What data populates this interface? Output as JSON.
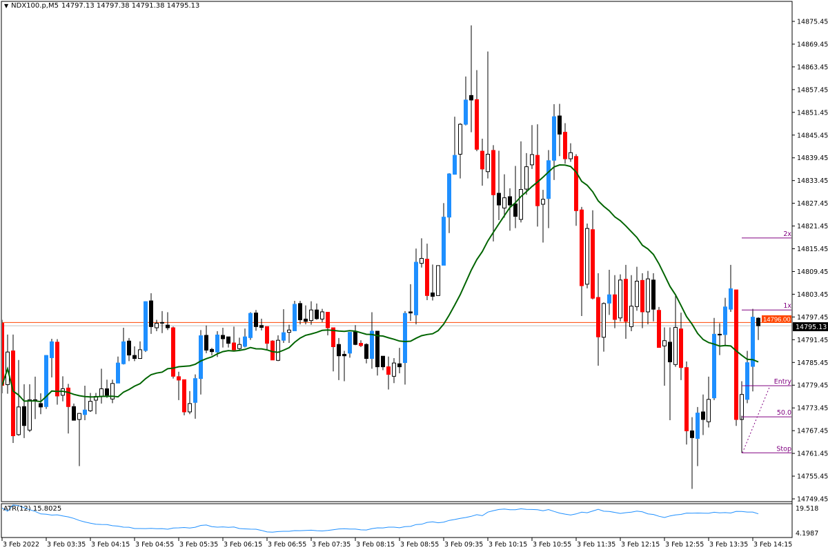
{
  "header": {
    "dropdown_icon": "triangle-down-icon",
    "symbol": "NDX100.p,M5",
    "ohlc": "14797.13 14797.38 14791.38 14795.13"
  },
  "colors": {
    "bull_strong": "#1e8fff",
    "bear_strong": "#ff0000",
    "bull": "#ffffff",
    "bear": "#000000",
    "ma": "#006400",
    "atr": "#1e8fff",
    "ask_line": "#ff4500",
    "bid_line": "#c0c0c0",
    "levels": "#800080"
  },
  "price_axis": {
    "ticks": [
      "14875.45",
      "14869.45",
      "14863.45",
      "14857.45",
      "14851.45",
      "14845.45",
      "14839.45",
      "14833.45",
      "14827.45",
      "14821.45",
      "14815.45",
      "14809.45",
      "14803.45",
      "14797.45",
      "14791.45",
      "14785.45",
      "14779.45",
      "14773.45",
      "14767.45",
      "14761.45",
      "14755.45",
      "14749.45"
    ],
    "ask_label": "14796.00",
    "bid_label": "14795.13"
  },
  "time_axis": {
    "labels": [
      "3 Feb 2022",
      "3 Feb 03:35",
      "3 Feb 04:15",
      "3 Feb 04:55",
      "3 Feb 05:35",
      "3 Feb 06:15",
      "3 Feb 06:55",
      "3 Feb 07:35",
      "3 Feb 08:15",
      "3 Feb 08:55",
      "3 Feb 09:35",
      "3 Feb 10:15",
      "3 Feb 10:55",
      "3 Feb 11:35",
      "3 Feb 12:15",
      "3 Feb 12:55",
      "3 Feb 13:35",
      "3 Feb 14:15"
    ]
  },
  "indicators": {
    "ma_period": 20,
    "atr_label": "ATR(12) 15.8025",
    "atr_period": 12,
    "atr_axis": [
      "19.518",
      "4.1987"
    ],
    "atr_range": [
      4.1987,
      19.518
    ]
  },
  "price_range": [
    14749.45,
    14875.45
  ],
  "ask_price": 14796.0,
  "bid_price": 14795.13,
  "levels": [
    {
      "label": "2x",
      "price": 14818.3
    },
    {
      "label": "1x",
      "price": 14799.3
    },
    {
      "label": "Entry",
      "price": 14779.3
    },
    {
      "label": "50.0",
      "price": 14771.1
    },
    {
      "label": "Stop",
      "price": 14761.6
    }
  ],
  "chart_data": {
    "type": "candlestick",
    "candles": [
      [
        14795.8,
        14796.7,
        14777.3,
        14779.4,
        "r"
      ],
      [
        14779.6,
        14792.8,
        14777.2,
        14788.2,
        "w"
      ],
      [
        14788.5,
        14792.8,
        14764.2,
        14766.1,
        "r"
      ],
      [
        14766.4,
        14786.1,
        14766.1,
        14773.7,
        "w"
      ],
      [
        14773.8,
        14779.7,
        14765.5,
        14768.8,
        "k"
      ],
      [
        14767.6,
        14779.7,
        14767.1,
        14775.6,
        "w"
      ],
      [
        14775.6,
        14781.7,
        14770.5,
        14775.4,
        "k"
      ],
      [
        14774.6,
        14777.3,
        14771.8,
        14773.7,
        "k"
      ],
      [
        14773.8,
        14787.4,
        14773.2,
        14787.3,
        "b"
      ],
      [
        14786.7,
        14791.7,
        14781.5,
        14790.9,
        "b"
      ],
      [
        14790.8,
        14791.6,
        14774.3,
        14776.6,
        "r"
      ],
      [
        14776.8,
        14781.8,
        14775.2,
        14778.5,
        "w"
      ],
      [
        14778.7,
        14779.8,
        14766.7,
        14773.8,
        "r"
      ],
      [
        14773.8,
        14774.6,
        14770.1,
        14770.2,
        "k"
      ],
      [
        14770.4,
        14772.1,
        14758.1,
        14772.0,
        "w"
      ],
      [
        14771.7,
        14779.3,
        14770.2,
        14772.9,
        "b"
      ],
      [
        14772.7,
        14777.4,
        14772.4,
        14775.2,
        "w"
      ],
      [
        14775.5,
        14777.4,
        14771.8,
        14776.5,
        "w"
      ],
      [
        14776.5,
        14783.8,
        14774.6,
        14778.5,
        "w"
      ],
      [
        14778.5,
        14780.9,
        14776.1,
        14776.8,
        "k"
      ],
      [
        14775.8,
        14780.9,
        14774.7,
        14779.9,
        "w"
      ],
      [
        14780.0,
        14787.0,
        14780.0,
        14785.3,
        "b"
      ],
      [
        14785.1,
        14794.6,
        14784.9,
        14790.9,
        "b"
      ],
      [
        14791.1,
        14791.9,
        14785.8,
        14787.4,
        "k"
      ],
      [
        14787.3,
        14789.7,
        14785.8,
        14786.5,
        "k"
      ],
      [
        14786.5,
        14791.0,
        14786.4,
        14788.8,
        "w"
      ],
      [
        14788.6,
        14801.6,
        14788.2,
        14801.5,
        "b"
      ],
      [
        14801.7,
        14803.7,
        14793.0,
        14794.9,
        "k"
      ],
      [
        14794.6,
        14796.7,
        14793.7,
        14795.8,
        "w"
      ],
      [
        14796.0,
        14799.0,
        14793.2,
        14795.9,
        "k"
      ],
      [
        14795.3,
        14798.7,
        14794.0,
        14794.6,
        "k"
      ],
      [
        14794.6,
        14794.9,
        14781.2,
        14781.8,
        "r"
      ],
      [
        14781.7,
        14783.0,
        14775.5,
        14780.8,
        "r"
      ],
      [
        14780.9,
        14780.9,
        14771.5,
        14772.4,
        "r"
      ],
      [
        14772.4,
        14777.9,
        14771.8,
        14774.6,
        "w"
      ],
      [
        14774.9,
        14782.3,
        14770.6,
        14781.2,
        "b"
      ],
      [
        14781.2,
        14794.0,
        14777.0,
        14792.5,
        "b"
      ],
      [
        14792.6,
        14795.2,
        14787.9,
        14788.7,
        "k"
      ],
      [
        14788.9,
        14789.3,
        14787.3,
        14788.3,
        "k"
      ],
      [
        14788.2,
        14793.7,
        14786.9,
        14792.7,
        "b"
      ],
      [
        14792.6,
        14794.6,
        14789.4,
        14791.7,
        "k"
      ],
      [
        14792.2,
        14792.2,
        14789.4,
        14790.5,
        "k"
      ],
      [
        14790.6,
        14794.9,
        14788.5,
        14788.8,
        "r"
      ],
      [
        14789.1,
        14792.0,
        14788.8,
        14790.2,
        "w"
      ],
      [
        14789.7,
        14794.4,
        14789.4,
        14792.2,
        "b"
      ],
      [
        14792.0,
        14798.7,
        14791.4,
        14798.4,
        "b"
      ],
      [
        14798.5,
        14799.3,
        14793.8,
        14794.9,
        "k"
      ],
      [
        14795.2,
        14797.0,
        14793.9,
        14794.7,
        "k"
      ],
      [
        14794.9,
        14794.9,
        14788.8,
        14790.5,
        "r"
      ],
      [
        14791.1,
        14791.3,
        14786.1,
        14786.1,
        "r"
      ],
      [
        14786.0,
        14792.6,
        14785.8,
        14791.3,
        "w"
      ],
      [
        14791.3,
        14799.5,
        14790.6,
        14793.3,
        "b"
      ],
      [
        14793.4,
        14795.4,
        14790.6,
        14794.0,
        "w"
      ],
      [
        14793.8,
        14801.7,
        14793.8,
        14800.8,
        "b"
      ],
      [
        14801.0,
        14801.7,
        14795.5,
        14796.7,
        "k"
      ],
      [
        14796.9,
        14800.5,
        14795.5,
        14796.3,
        "k"
      ],
      [
        14796.5,
        14801.6,
        14795.4,
        14799.3,
        "w"
      ],
      [
        14799.3,
        14801.0,
        14796.7,
        14797.0,
        "k"
      ],
      [
        14796.9,
        14799.6,
        14796.1,
        14798.8,
        "w"
      ],
      [
        14798.7,
        14798.8,
        14792.6,
        14794.6,
        "r"
      ],
      [
        14794.6,
        14794.6,
        14783.1,
        14789.6,
        "r"
      ],
      [
        14790.2,
        14791.9,
        14780.8,
        14787.2,
        "k"
      ],
      [
        14787.6,
        14788.5,
        14780.5,
        14787.2,
        "k"
      ],
      [
        14787.9,
        14793.4,
        14786.7,
        14793.4,
        "b"
      ],
      [
        14793.5,
        14795.3,
        14790.0,
        14790.2,
        "k"
      ],
      [
        14790.5,
        14791.3,
        14789.5,
        14789.9,
        "r"
      ],
      [
        14790.2,
        14790.5,
        14785.2,
        14786.5,
        "k"
      ],
      [
        14786.5,
        14798.7,
        14783.8,
        14793.7,
        "b"
      ],
      [
        14793.7,
        14793.7,
        14782.0,
        14784.3,
        "k"
      ],
      [
        14787.1,
        14787.1,
        14783.4,
        14784.3,
        "k"
      ],
      [
        14784.3,
        14787.0,
        14778.3,
        14782.3,
        "r"
      ],
      [
        14781.8,
        14786.6,
        14780.0,
        14785.3,
        "w"
      ],
      [
        14785.1,
        14789.3,
        14782.6,
        14784.3,
        "k"
      ],
      [
        14785.4,
        14799.0,
        14779.6,
        14798.4,
        "b"
      ],
      [
        14798.8,
        14806.1,
        14796.4,
        14798.5,
        "k"
      ],
      [
        14798.0,
        14815.5,
        14795.5,
        14811.9,
        "b"
      ],
      [
        14811.6,
        14818.2,
        14810.5,
        14812.9,
        "w"
      ],
      [
        14812.7,
        14816.8,
        14801.9,
        14803.1,
        "r"
      ],
      [
        14803.8,
        14811.3,
        14801.8,
        14802.9,
        "k"
      ],
      [
        14803.1,
        14811.1,
        14803.0,
        14811.0,
        "w"
      ],
      [
        14811.1,
        14827.5,
        14811.1,
        14823.8,
        "b"
      ],
      [
        14823.8,
        14835.4,
        14819.6,
        14835.2,
        "b"
      ],
      [
        14835.1,
        14850.3,
        14835.0,
        14840.1,
        "b"
      ],
      [
        14840.4,
        14848.6,
        14834.0,
        14848.3,
        "w"
      ],
      [
        14848.3,
        14860.9,
        14848.0,
        14854.7,
        "b"
      ],
      [
        14855.9,
        14874.4,
        14846.2,
        14854.7,
        "k"
      ],
      [
        14854.8,
        14862.6,
        14841.2,
        14841.7,
        "r"
      ],
      [
        14841.2,
        14844.5,
        14832.1,
        14836.5,
        "r"
      ],
      [
        14835.8,
        14867.5,
        14834.0,
        14840.4,
        "w"
      ],
      [
        14841.4,
        14842.8,
        14817.4,
        14829.7,
        "r"
      ],
      [
        14830.1,
        14841.3,
        14823.0,
        14827.0,
        "k"
      ],
      [
        14826.2,
        14835.1,
        14823.7,
        14828.9,
        "w"
      ],
      [
        14829.2,
        14831.4,
        14820.2,
        14827.0,
        "k"
      ],
      [
        14827.3,
        14837.3,
        14820.9,
        14824.0,
        "k"
      ],
      [
        14823.2,
        14843.8,
        14822.4,
        14831.1,
        "w"
      ],
      [
        14831.2,
        14840.7,
        14829.7,
        14837.1,
        "w"
      ],
      [
        14837.6,
        14848.1,
        14836.5,
        14840.3,
        "w"
      ],
      [
        14840.1,
        14848.3,
        14821.3,
        14826.8,
        "r"
      ],
      [
        14827.2,
        14831.0,
        14817.1,
        14828.5,
        "w"
      ],
      [
        14828.7,
        14841.5,
        14820.9,
        14838.7,
        "b"
      ],
      [
        14838.8,
        14853.6,
        14833.6,
        14850.3,
        "b"
      ],
      [
        14850.5,
        14853.7,
        14839.9,
        14845.7,
        "k"
      ],
      [
        14846.2,
        14848.6,
        14837.9,
        14839.2,
        "r"
      ],
      [
        14839.2,
        14843.3,
        14838.4,
        14840.8,
        "w"
      ],
      [
        14839.8,
        14840.4,
        14821.5,
        14825.5,
        "r"
      ],
      [
        14825.7,
        14826.5,
        14797.7,
        14805.7,
        "r"
      ],
      [
        14806.1,
        14822.1,
        14805.0,
        14820.8,
        "w"
      ],
      [
        14820.5,
        14825.6,
        14802.1,
        14802.4,
        "r"
      ],
      [
        14802.6,
        14809.0,
        14784.6,
        14792.2,
        "r"
      ],
      [
        14792.1,
        14801.3,
        14788.3,
        14801.0,
        "w"
      ],
      [
        14801.1,
        14809.9,
        14798.0,
        14803.3,
        "b"
      ],
      [
        14803.3,
        14808.5,
        14794.5,
        14796.8,
        "r"
      ],
      [
        14797.2,
        14808.7,
        14796.3,
        14807.2,
        "w"
      ],
      [
        14807.4,
        14811.2,
        14791.7,
        14796.3,
        "r"
      ],
      [
        14794.9,
        14808.5,
        14793.7,
        14800.3,
        "w"
      ],
      [
        14800.2,
        14810.7,
        14799.1,
        14806.9,
        "w"
      ],
      [
        14807.1,
        14809.0,
        14794.5,
        14798.8,
        "r"
      ],
      [
        14798.8,
        14809.6,
        14795.5,
        14807.5,
        "w"
      ],
      [
        14807.2,
        14809.0,
        14796.3,
        14799.5,
        "k"
      ],
      [
        14799.2,
        14800.1,
        14789.4,
        14789.4,
        "r"
      ],
      [
        14789.8,
        14794.7,
        14779.3,
        14791.2,
        "w"
      ],
      [
        14790.8,
        14794.7,
        14770.2,
        14785.6,
        "k"
      ],
      [
        14784.9,
        14803.4,
        14784.3,
        14794.7,
        "w"
      ],
      [
        14794.3,
        14798.6,
        14780.8,
        14784.1,
        "r"
      ],
      [
        14784.1,
        14785.7,
        14763.8,
        14767.4,
        "r"
      ],
      [
        14767.4,
        14771.0,
        14752.1,
        14765.6,
        "k"
      ],
      [
        14765.4,
        14773.7,
        14758.1,
        14772.1,
        "b"
      ],
      [
        14772.4,
        14777.0,
        14766.3,
        14770.4,
        "k"
      ],
      [
        14769.8,
        14781.7,
        14768.3,
        14775.7,
        "w"
      ],
      [
        14776.1,
        14797.2,
        14775.5,
        14792.9,
        "b"
      ],
      [
        14792.9,
        14795.8,
        14787.4,
        14792.7,
        "k"
      ],
      [
        14792.8,
        14802.5,
        14789.8,
        14800.1,
        "b"
      ],
      [
        14799.5,
        14811.2,
        14798.8,
        14804.9,
        "b"
      ],
      [
        14804.6,
        14804.6,
        14768.7,
        14770.4,
        "r"
      ],
      [
        14770.4,
        14780.5,
        14762.3,
        14777.0,
        "w"
      ],
      [
        14775.7,
        14788.5,
        14774.7,
        14785.4,
        "b"
      ],
      [
        14784.4,
        14799.6,
        14777.8,
        14797.4,
        "b"
      ],
      [
        14797.13,
        14797.38,
        14791.38,
        14795.13,
        "k"
      ]
    ]
  }
}
